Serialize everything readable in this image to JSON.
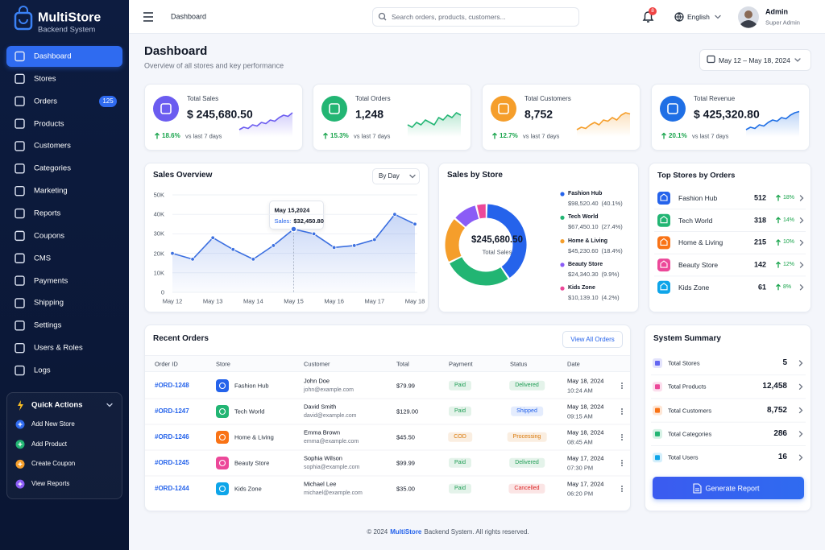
{
  "brand": {
    "name": "MultiStore",
    "subtitle": "Backend System"
  },
  "nav": [
    {
      "label": "Dashboard",
      "active": true
    },
    {
      "label": "Stores"
    },
    {
      "label": "Orders",
      "badge": 125
    },
    {
      "label": "Products"
    },
    {
      "label": "Customers"
    },
    {
      "label": "Categories"
    },
    {
      "label": "Marketing"
    },
    {
      "label": "Reports"
    },
    {
      "label": "Coupons"
    },
    {
      "label": "CMS"
    },
    {
      "label": "Payments"
    },
    {
      "label": "Shipping"
    },
    {
      "label": "Settings"
    },
    {
      "label": "Users & Roles"
    },
    {
      "label": "Logs"
    }
  ],
  "quick_actions": {
    "title": "Quick Actions",
    "items": [
      "Add New Store",
      "Add Product",
      "Create Coupon",
      "View Reports"
    ]
  },
  "topbar": {
    "title": "Dashboard",
    "search_placeholder": "Search orders, products, customers...",
    "notification_count": 8,
    "language": "English",
    "user": {
      "name": "Admin",
      "role": "Super Admin"
    }
  },
  "header": {
    "title": "Dashboard",
    "subtitle": "Overview of all stores and key performance",
    "date_range": "May 12 – May 18, 2024"
  },
  "kpis": [
    {
      "label": "Total Sales",
      "value": "$ 245,680.50",
      "change": "18.6%",
      "period": "vs last 7 days",
      "color": "#6b5cf0",
      "trend": [
        2,
        3,
        2.5,
        4,
        3.5,
        5,
        4.5,
        6,
        5.5,
        7,
        8,
        7.5,
        9
      ]
    },
    {
      "label": "Total Orders",
      "value": "1,248",
      "change": "15.3%",
      "period": "vs last 7 days",
      "color": "#22b573",
      "trend": [
        4,
        3,
        5,
        4,
        6,
        5,
        4,
        7,
        6,
        8,
        7,
        9,
        8
      ]
    },
    {
      "label": "Total Customers",
      "value": "8,752",
      "change": "12.7%",
      "period": "vs last 7 days",
      "color": "#f59e2b",
      "trend": [
        2,
        3,
        2.5,
        4,
        5,
        4,
        6,
        5.5,
        7,
        6,
        8,
        9,
        8.5
      ]
    },
    {
      "label": "Total Revenue",
      "value": "$ 425,320.80",
      "change": "20.1%",
      "period": "vs last 7 days",
      "color": "#1f6fe5",
      "trend": [
        2,
        3,
        2.5,
        4,
        3.5,
        5,
        6,
        5.5,
        7,
        6.5,
        8,
        9,
        9.5
      ]
    }
  ],
  "sales_overview": {
    "type": "line",
    "title": "Sales Overview",
    "filter": "By Day",
    "categories": [
      "May 12",
      null,
      "May 13",
      null,
      "May 14",
      null,
      "May 15",
      null,
      "May 16",
      null,
      "May 17",
      null,
      "May 18"
    ],
    "values": [
      20000,
      17000,
      28000,
      22000,
      17000,
      24000,
      32450.8,
      30000,
      23000,
      24000,
      27000,
      40000,
      35000
    ],
    "ylim": [
      0,
      50000
    ],
    "yticks": [
      0,
      {
        "value": 10000,
        "label": "10K"
      },
      {
        "value": 20000,
        "label": "20K"
      },
      {
        "value": 30000,
        "label": "30K"
      },
      {
        "value": 40000,
        "label": "40K"
      },
      {
        "value": 50000,
        "label": "50K"
      }
    ],
    "color": "#3b6fe0",
    "grid": true,
    "tooltip": {
      "date": "May 15,2024",
      "label": "Sales:",
      "value": "$32,450.80"
    }
  },
  "sales_by_store": {
    "type": "donut",
    "title": "Sales by Store",
    "center_value": "$245,680.50",
    "center_label": "Total Sales",
    "categories": [
      "Fashion Hub",
      "Tech World",
      "Home & Living",
      "Beauty Store",
      "Kids Zone"
    ],
    "values": [
      40.1,
      27.4,
      18.4,
      9.9,
      4.2
    ],
    "value_labels": [
      "(40.1%)",
      "(27.4%)",
      "(18.4%)",
      "(9.9%)",
      "(4.2%)"
    ],
    "amounts": [
      "$98,520.40",
      "$67,450.10",
      "$45,230.60",
      "$24,340.30",
      "$10,139.10"
    ],
    "colors": [
      "#2563eb",
      "#22b573",
      "#f59e2b",
      "#8b5cf6",
      "#ec4899"
    ]
  },
  "top_stores": {
    "title": "Top Stores by Orders",
    "rows": [
      {
        "name": "Fashion Hub",
        "orders": 512,
        "change": "18%"
      },
      {
        "name": "Tech World",
        "orders": 318,
        "change": "14%"
      },
      {
        "name": "Home & Living",
        "orders": 215,
        "change": "10%"
      },
      {
        "name": "Beauty Store",
        "orders": 142,
        "change": "12%"
      },
      {
        "name": "Kids Zone",
        "orders": 61,
        "change": "8%"
      }
    ]
  },
  "recent_orders": {
    "title": "Recent Orders",
    "button": "View All Orders",
    "columns": [
      "Order ID",
      "Store",
      "Customer",
      "Total",
      "Payment",
      "Status",
      "Date"
    ],
    "rows": [
      {
        "id": "#ORD-1248",
        "store": "Fashion Hub",
        "customer": "John Doe",
        "email": "john@example.com",
        "total": "$79.99",
        "payment": "Paid",
        "payment_color": "#1f9d55",
        "status": "Delivered",
        "status_color": "#1f9d55",
        "date": "May 18, 2024",
        "time": "10:24 AM"
      },
      {
        "id": "#ORD-1247",
        "store": "Tech World",
        "customer": "David Smith",
        "email": "david@example.com",
        "total": "$129.00",
        "payment": "Paid",
        "payment_color": "#1f9d55",
        "status": "Shipped",
        "status_color": "#2563eb",
        "date": "May 18, 2024",
        "time": "09:15 AM"
      },
      {
        "id": "#ORD-1246",
        "store": "Home & Living",
        "customer": "Emma Brown",
        "email": "emma@example.com",
        "total": "$45.50",
        "payment": "COD",
        "payment_color": "#d97706",
        "status": "Processing",
        "status_color": "#d97706",
        "date": "May 18, 2024",
        "time": "08:45 AM"
      },
      {
        "id": "#ORD-1245",
        "store": "Beauty Store",
        "customer": "Sophia Wilson",
        "email": "sophia@example.com",
        "total": "$99.99",
        "payment": "Paid",
        "payment_color": "#1f9d55",
        "status": "Delivered",
        "status_color": "#1f9d55",
        "date": "May 17, 2024",
        "time": "07:30 PM"
      },
      {
        "id": "#ORD-1244",
        "store": "Kids Zone",
        "customer": "Michael Lee",
        "email": "michael@example.com",
        "total": "$35.00",
        "payment": "Paid",
        "payment_color": "#1f9d55",
        "status": "Cancelled",
        "status_color": "#dc2626",
        "date": "May 17, 2024",
        "time": "06:20 PM"
      }
    ]
  },
  "system_summary": {
    "title": "System Summary",
    "rows": [
      {
        "label": "Total Stores",
        "value": "5"
      },
      {
        "label": "Total Products",
        "value": "12,458"
      },
      {
        "label": "Total Customers",
        "value": "8,752"
      },
      {
        "label": "Total Categories",
        "value": "286"
      },
      {
        "label": "Total Users",
        "value": "16"
      }
    ],
    "button": "Generate Report"
  },
  "footer": {
    "copyright": "© 2024",
    "brand": "MultiStore",
    "text": "Backend System. All rights reserved."
  }
}
